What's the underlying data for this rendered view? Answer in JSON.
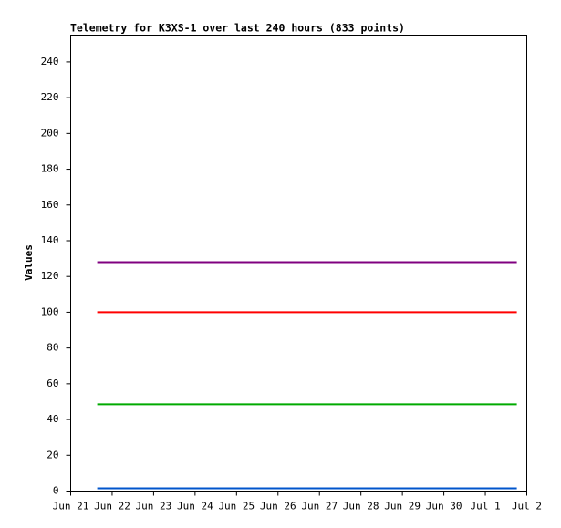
{
  "chart_data": {
    "type": "line",
    "title": "Telemetry for K3XS-1 over last 240 hours (833 points)",
    "y_label": "Values",
    "x": [
      0.64,
      10.76
    ],
    "series": [
      {
        "color": "#800080",
        "values": [
          128,
          128
        ]
      },
      {
        "color": "#ff0000",
        "values": [
          100,
          100
        ]
      },
      {
        "color": "#00aa00",
        "values": [
          48.5,
          48.5
        ]
      },
      {
        "color": "#0055cc",
        "values": [
          1.5,
          1.5
        ]
      }
    ],
    "xlim": [
      0,
      11
    ],
    "xticks": [
      {
        "value": 0,
        "label": "Jun 21"
      },
      {
        "value": 1,
        "label": "Jun 22"
      },
      {
        "value": 2,
        "label": "Jun 23"
      },
      {
        "value": 3,
        "label": "Jun 24"
      },
      {
        "value": 4,
        "label": "Jun 25"
      },
      {
        "value": 5,
        "label": "Jun 26"
      },
      {
        "value": 6,
        "label": "Jun 27"
      },
      {
        "value": 7,
        "label": "Jun 28"
      },
      {
        "value": 8,
        "label": "Jun 29"
      },
      {
        "value": 9,
        "label": "Jun 30"
      },
      {
        "value": 10,
        "label": "Jul 1"
      },
      {
        "value": 11,
        "label": "Jul 2"
      }
    ],
    "ylim": [
      0,
      255
    ],
    "yticks": [
      0,
      20,
      40,
      60,
      80,
      100,
      120,
      140,
      160,
      180,
      200,
      220,
      240
    ],
    "grid": false
  }
}
